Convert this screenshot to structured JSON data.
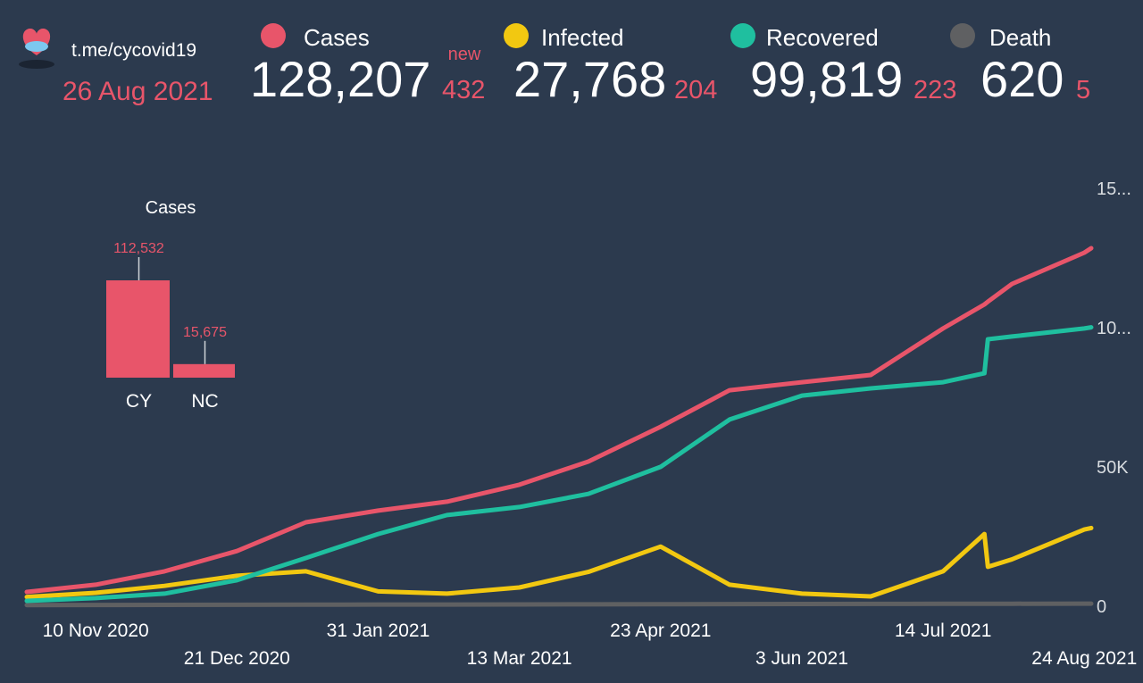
{
  "header": {
    "channel": "t.me/cycovid19",
    "date": "26 Aug 2021",
    "new_label": "new",
    "totals": [
      {
        "value": "128,207",
        "new": "432"
      },
      {
        "value": "27,768",
        "new": "204"
      },
      {
        "value": "99,819",
        "new": "223"
      },
      {
        "value": "620",
        "new": "5"
      }
    ]
  },
  "chart_data": [
    {
      "type": "bar",
      "title": "Cases",
      "categories": [
        "CY",
        "NC"
      ],
      "values": [
        112532,
        15675
      ],
      "value_labels": [
        "112,532",
        "15,675"
      ],
      "color": "#e8556a"
    },
    {
      "type": "line",
      "x": [
        "2020-10-21",
        "2020-11-10",
        "2020-11-30",
        "2020-12-21",
        "2021-01-10",
        "2021-01-31",
        "2021-02-20",
        "2021-03-13",
        "2021-04-02",
        "2021-04-23",
        "2021-05-13",
        "2021-06-03",
        "2021-06-23",
        "2021-07-14",
        "2021-07-26",
        "2021-07-27",
        "2021-08-03",
        "2021-08-24",
        "2021-08-26"
      ],
      "xlim": [
        "2020-10-21",
        "2021-08-26"
      ],
      "xticks": [
        {
          "value": "2020-11-10",
          "label": "10 Nov 2020"
        },
        {
          "value": "2020-12-21",
          "label": "21 Dec 2020"
        },
        {
          "value": "2021-01-31",
          "label": "31 Jan 2021"
        },
        {
          "value": "2021-03-13",
          "label": "13 Mar 2021"
        },
        {
          "value": "2021-04-23",
          "label": "23 Apr 2021"
        },
        {
          "value": "2021-06-03",
          "label": "3 Jun 2021"
        },
        {
          "value": "2021-07-14",
          "label": "14 Jul 2021"
        },
        {
          "value": "2021-08-24",
          "label": "24 Aug 2021"
        }
      ],
      "ylim": [
        0,
        150000
      ],
      "yticks": [
        0,
        {
          "value": 50000,
          "label": "50K"
        },
        {
          "value": 100000,
          "label": "10..."
        },
        {
          "value": 150000,
          "label": "15..."
        }
      ],
      "grid": false,
      "series": [
        {
          "name": "Cases",
          "color": "#e8556a",
          "values": [
            4800,
            7400,
            12200,
            19500,
            29800,
            34000,
            37200,
            43300,
            51600,
            64100,
            77200,
            80100,
            82700,
            99400,
            108000,
            109000,
            115400,
            126600,
            128207
          ]
        },
        {
          "name": "Infected",
          "color": "#f2c811",
          "values": [
            3000,
            4500,
            7000,
            10600,
            12200,
            5000,
            4200,
            6400,
            12000,
            21100,
            7400,
            4200,
            3200,
            12200,
            25600,
            13800,
            16500,
            27200,
            27768
          ]
        },
        {
          "name": "Recovered",
          "color": "#1fbf9f",
          "values": [
            1600,
            2600,
            4200,
            9000,
            17000,
            25600,
            32400,
            35300,
            40000,
            49700,
            66700,
            75300,
            77900,
            80100,
            83300,
            95500,
            96500,
            99400,
            99819
          ]
        },
        {
          "name": "Death",
          "color": "#5f6062",
          "values": [
            100,
            130,
            160,
            200,
            240,
            280,
            300,
            320,
            360,
            400,
            440,
            480,
            510,
            540,
            560,
            560,
            580,
            615,
            620
          ]
        }
      ]
    }
  ]
}
